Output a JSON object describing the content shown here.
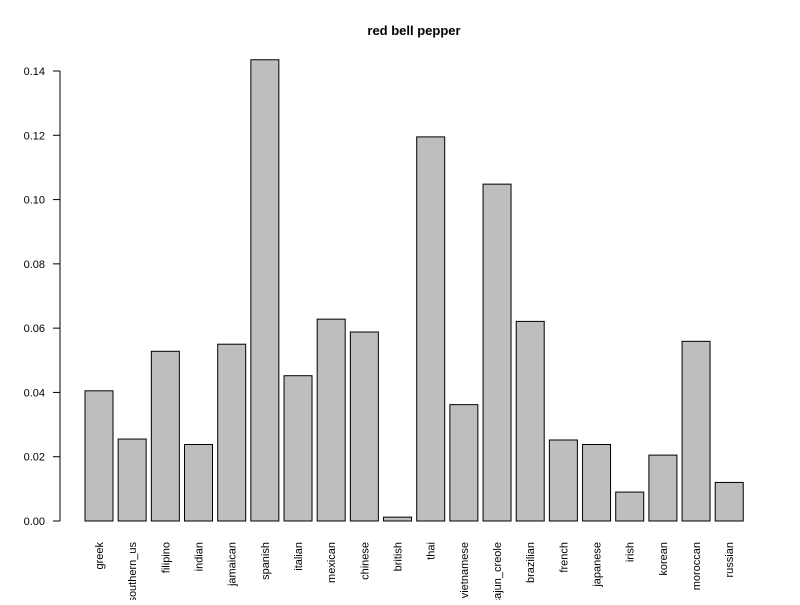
{
  "chart_data": {
    "type": "bar",
    "title": "red bell pepper",
    "xlabel": "",
    "ylabel": "",
    "ylim": [
      0,
      0.14
    ],
    "yticks": [
      0.0,
      0.02,
      0.04,
      0.06,
      0.08,
      0.1,
      0.12,
      0.14
    ],
    "ytick_labels": [
      "0.00",
      "0.02",
      "0.04",
      "0.06",
      "0.08",
      "0.10",
      "0.12",
      "0.14"
    ],
    "categories": [
      "greek",
      "southern_us",
      "filipino",
      "indian",
      "jamaican",
      "spanish",
      "italian",
      "mexican",
      "chinese",
      "british",
      "thai",
      "vietnamese",
      "cajun_creole",
      "brazilian",
      "french",
      "japanese",
      "irish",
      "korean",
      "moroccan",
      "russian"
    ],
    "values": [
      0.0405,
      0.0255,
      0.0528,
      0.0238,
      0.055,
      0.1435,
      0.0452,
      0.0628,
      0.0588,
      0.0012,
      0.1195,
      0.0362,
      0.1048,
      0.0621,
      0.0252,
      0.0238,
      0.009,
      0.0205,
      0.0559,
      0.012
    ],
    "bar_color": "#bebebe",
    "grid": false,
    "legend": "none"
  }
}
